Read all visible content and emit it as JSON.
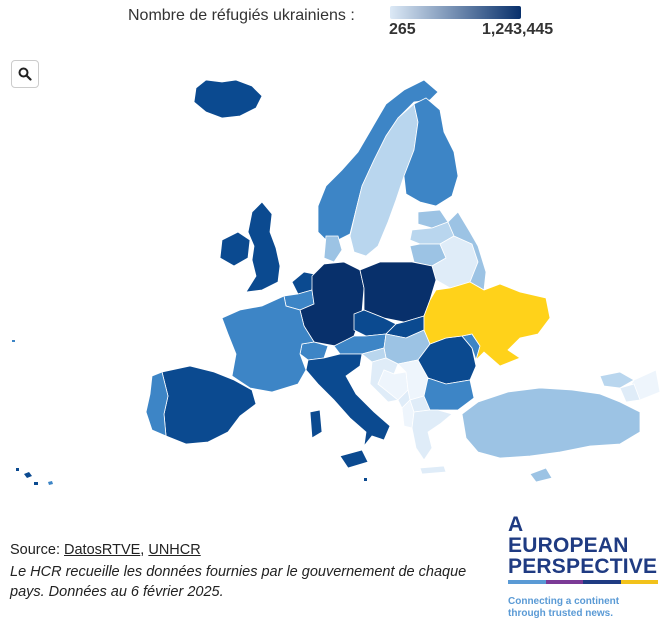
{
  "legend": {
    "title": "Nombre de réfugiés ukrainiens :",
    "min_label": "265",
    "max_label": "1,243,445",
    "color_low": "#dce9f6",
    "color_high": "#08306b"
  },
  "search": {
    "icon": "magnifier-icon"
  },
  "map": {
    "highlight_color": "#ffd21a",
    "colors": {
      "ukraine": "#ffd21a",
      "darkest": "#08306b",
      "dark": "#0b4a90",
      "mid": "#3d85c6",
      "light": "#9cc3e4",
      "lighter": "#b9d6ee",
      "lightest": "#dfecf8",
      "faint": "#eef5fc"
    }
  },
  "footer": {
    "source_prefix": "Source: ",
    "source_link_1": "DatosRTVE",
    "source_sep": ", ",
    "source_link_2": "UNHCR",
    "note": "Le HCR recueille les données fournies par le gouvernement de chaque pays. Données au 6 février 2025."
  },
  "logo": {
    "line1": "A",
    "line2": "EUROPEAN",
    "line3": "PERSPECTIVE",
    "tagline_1": "Connecting a continent",
    "tagline_2": "through trusted news.",
    "stripe_colors": [
      "#5a9ad5",
      "#7b3a96",
      "#1f3b82",
      "#f2c21b"
    ]
  }
}
